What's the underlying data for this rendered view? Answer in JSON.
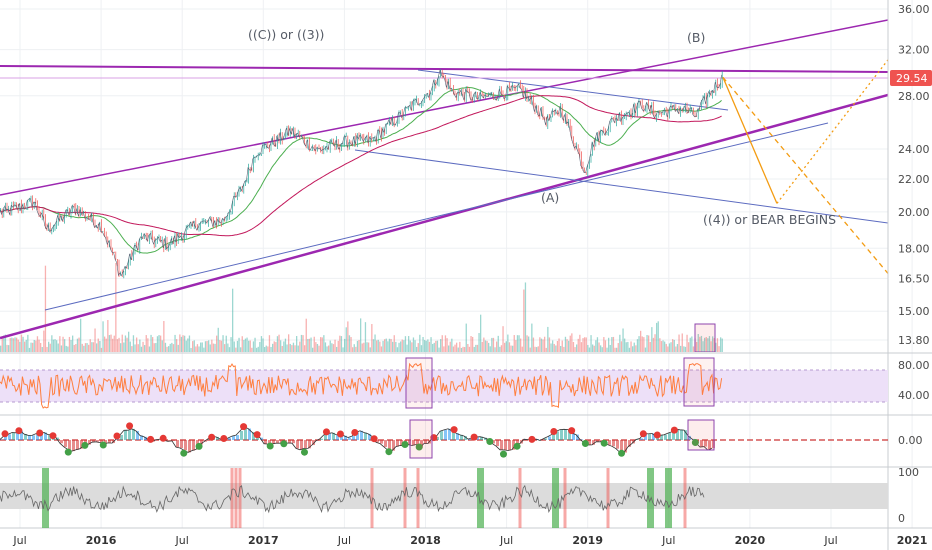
{
  "colors": {
    "candle_up": "#26a69a",
    "candle_down": "#ef5350",
    "trend_purple": "#9c27b0",
    "channel_blue": "#5c6bc0",
    "projection_orange": "#f39c12",
    "rsi_line": "#ff7f3f",
    "rsi_band": "#e9d7f7",
    "price_tag": "#ef5350",
    "highlight_box": "#8e44ad"
  },
  "chart_data": {
    "type": "line",
    "price_axis": {
      "scale": "log",
      "ticks": [
        "36.00",
        "32.00",
        "28.00",
        "24.00",
        "22.00",
        "20.00",
        "18.00",
        "16.50",
        "15.00",
        "13.80"
      ],
      "last_price": "29.54"
    },
    "rsi_axis": {
      "ticks": [
        "80.00",
        "40.00"
      ]
    },
    "momentum_axis": {
      "ticks": [
        "0.00"
      ]
    },
    "oscillator_axis": {
      "ticks": [
        "100",
        "0"
      ]
    },
    "x_axis": {
      "ticks": [
        {
          "label": "Jul",
          "major": false
        },
        {
          "label": "2016",
          "major": true
        },
        {
          "label": "Jul",
          "major": false
        },
        {
          "label": "2017",
          "major": true
        },
        {
          "label": "Jul",
          "major": false
        },
        {
          "label": "2018",
          "major": true
        },
        {
          "label": "Jul",
          "major": false
        },
        {
          "label": "2019",
          "major": true
        },
        {
          "label": "Jul",
          "major": false
        },
        {
          "label": "2020",
          "major": true
        },
        {
          "label": "Jul",
          "major": false
        },
        {
          "label": "2021",
          "major": true
        }
      ]
    },
    "annotations": [
      "((C)) or ((3))",
      "(B)",
      "(A)",
      "((4)) or BEAR BEGINS"
    ],
    "price_path": [
      [
        "2015-06-01",
        20.0
      ],
      [
        "2015-08-01",
        20.6
      ],
      [
        "2015-09-01",
        19.0
      ],
      [
        "2015-11-01",
        20.2
      ],
      [
        "2016-01-01",
        19.2
      ],
      [
        "2016-02-15",
        16.6
      ],
      [
        "2016-04-01",
        18.6
      ],
      [
        "2016-06-01",
        18.2
      ],
      [
        "2016-08-01",
        19.3
      ],
      [
        "2016-10-01",
        19.5
      ],
      [
        "2016-11-15",
        21.5
      ],
      [
        "2016-12-15",
        23.8
      ],
      [
        "2017-02-01",
        24.6
      ],
      [
        "2017-03-01",
        25.3
      ],
      [
        "2017-05-01",
        23.9
      ],
      [
        "2017-07-01",
        24.5
      ],
      [
        "2017-09-01",
        24.6
      ],
      [
        "2017-11-01",
        26.3
      ],
      [
        "2018-01-15",
        28.5
      ],
      [
        "2018-02-01",
        30.0
      ],
      [
        "2018-03-01",
        28.3
      ],
      [
        "2018-05-01",
        27.8
      ],
      [
        "2018-07-01",
        28.3
      ],
      [
        "2018-08-01",
        28.5
      ],
      [
        "2018-10-01",
        26.0
      ],
      [
        "2018-11-01",
        27.0
      ],
      [
        "2018-12-24",
        22.5
      ],
      [
        "2019-01-15",
        24.6
      ],
      [
        "2019-03-01",
        26.2
      ],
      [
        "2019-05-01",
        27.3
      ],
      [
        "2019-06-01",
        26.6
      ],
      [
        "2019-08-01",
        27.0
      ],
      [
        "2019-09-01",
        26.4
      ],
      [
        "2019-10-01",
        28.2
      ],
      [
        "2019-11-01",
        29.54
      ]
    ],
    "projection_path": [
      [
        "2019-11-01",
        29.54
      ],
      [
        "2020-03-01",
        20.5
      ],
      [
        "2021-01-01",
        34.0
      ]
    ],
    "projection_bear_path": [
      [
        "2019-11-01",
        29.54
      ],
      [
        "2021-01-01",
        15.4
      ]
    ]
  }
}
